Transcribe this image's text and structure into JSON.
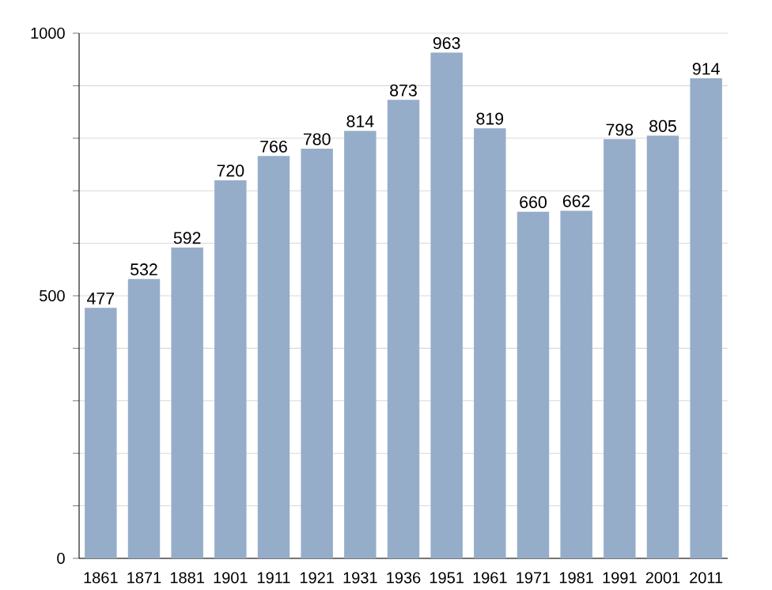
{
  "chart_data": {
    "type": "bar",
    "categories": [
      "1861",
      "1871",
      "1881",
      "1901",
      "1911",
      "1921",
      "1931",
      "1936",
      "1951",
      "1961",
      "1971",
      "1981",
      "1991",
      "2001",
      "2011"
    ],
    "values": [
      477,
      532,
      592,
      720,
      766,
      780,
      814,
      873,
      963,
      819,
      660,
      662,
      798,
      805,
      914
    ],
    "color": "#95adc9",
    "ylim": [
      0,
      1000
    ],
    "yticks": [
      0,
      {
        "value": 100,
        "label": null
      },
      {
        "value": 200,
        "label": null
      },
      {
        "value": 300,
        "label": null
      },
      {
        "value": 400,
        "label": null
      },
      500,
      {
        "value": 600,
        "label": null
      },
      {
        "value": 700,
        "label": null
      },
      {
        "value": 800,
        "label": null
      },
      {
        "value": 900,
        "label": null
      },
      1000
    ],
    "grid": "y",
    "data_labels": true
  }
}
